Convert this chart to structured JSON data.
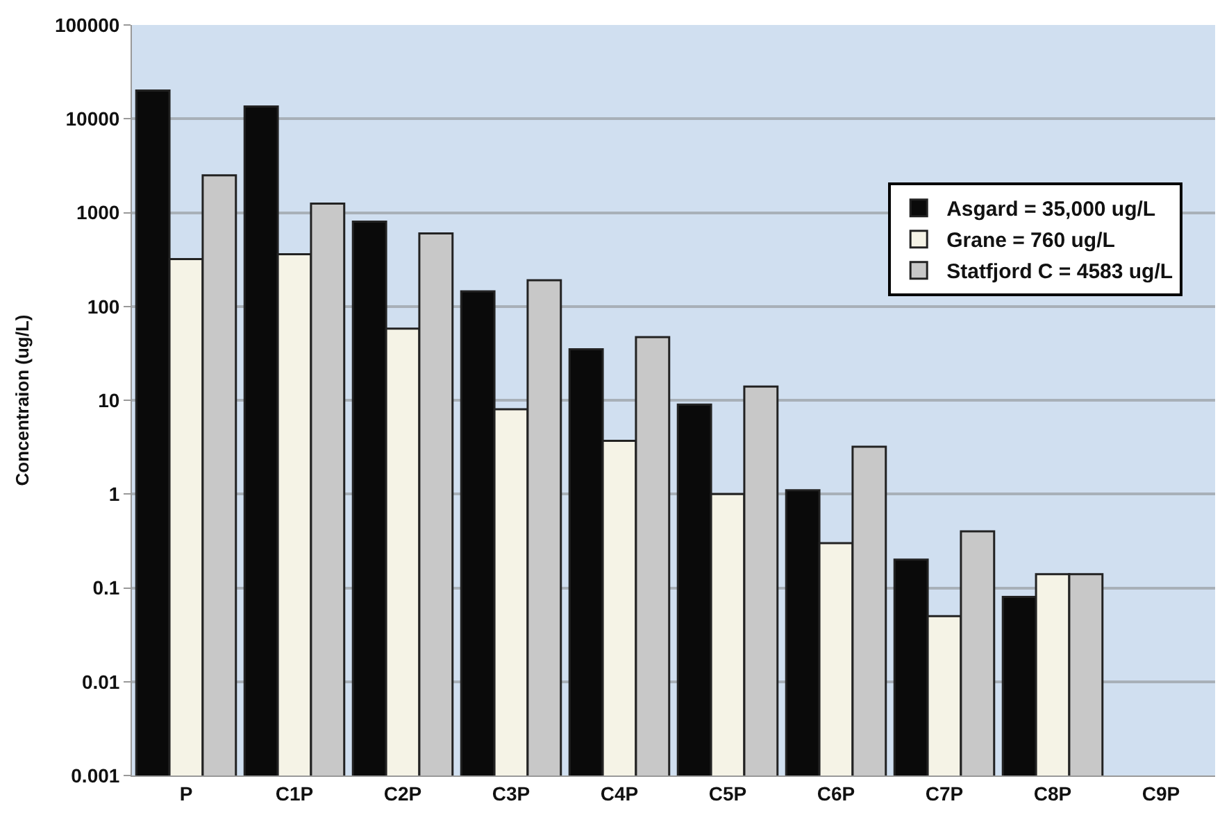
{
  "chart_data": {
    "type": "bar",
    "ylabel": "Concentraion (ug/L)",
    "categories": [
      "P",
      "C1P",
      "C2P",
      "C3P",
      "C4P",
      "C5P",
      "C6P",
      "C7P",
      "C8P",
      "C9P"
    ],
    "series": [
      {
        "name": "Asgard = 35,000 ug/L",
        "color": "#0a0a0a",
        "values": [
          20000,
          13500,
          800,
          145,
          35,
          9,
          1.1,
          0.2,
          0.08,
          null
        ]
      },
      {
        "name": "Grane = 760 ug/L",
        "color": "#f5f3e6",
        "values": [
          320,
          360,
          58,
          8,
          3.7,
          1,
          0.3,
          0.05,
          0.14,
          null
        ]
      },
      {
        "name": "Statfjord C = 4583 ug/L",
        "color": "#c8c8c8",
        "values": [
          2500,
          1250,
          600,
          190,
          47,
          14,
          3.2,
          0.4,
          0.14,
          null
        ]
      }
    ],
    "log": "y",
    "ylim": [
      0.001,
      100000
    ],
    "yticks": [
      {
        "value": 0.001,
        "label": "0.001"
      },
      {
        "value": 0.01,
        "label": "0.01"
      },
      {
        "value": 0.1,
        "label": "0.1"
      },
      1,
      10,
      100,
      1000,
      10000,
      100000
    ],
    "grid": "y",
    "legend": "top right"
  }
}
